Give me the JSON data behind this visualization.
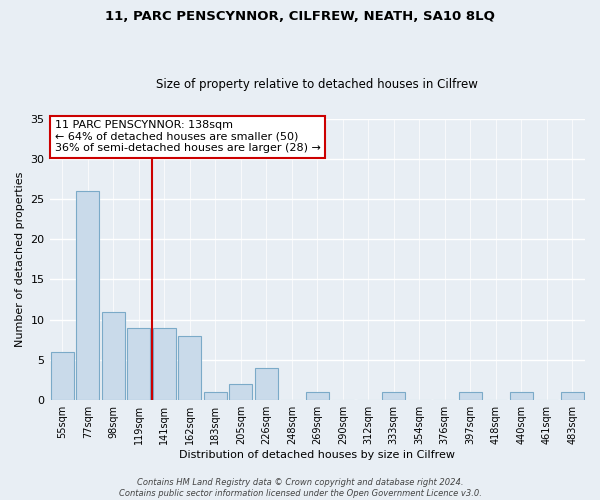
{
  "title": "11, PARC PENSCYNNOR, CILFREW, NEATH, SA10 8LQ",
  "subtitle": "Size of property relative to detached houses in Cilfrew",
  "xlabel": "Distribution of detached houses by size in Cilfrew",
  "ylabel": "Number of detached properties",
  "bar_labels": [
    "55sqm",
    "77sqm",
    "98sqm",
    "119sqm",
    "141sqm",
    "162sqm",
    "183sqm",
    "205sqm",
    "226sqm",
    "248sqm",
    "269sqm",
    "290sqm",
    "312sqm",
    "333sqm",
    "354sqm",
    "376sqm",
    "397sqm",
    "418sqm",
    "440sqm",
    "461sqm",
    "483sqm"
  ],
  "bar_values": [
    6,
    26,
    11,
    9,
    9,
    8,
    1,
    2,
    4,
    0,
    1,
    0,
    0,
    1,
    0,
    0,
    1,
    0,
    1,
    0,
    1
  ],
  "bar_color": "#c9daea",
  "bar_edge_color": "#7baac8",
  "ref_line_x": 3.5,
  "ref_line_color": "#cc0000",
  "annotation_line1": "11 PARC PENSCYNNOR: 138sqm",
  "annotation_line2": "← 64% of detached houses are smaller (50)",
  "annotation_line3": "36% of semi-detached houses are larger (28) →",
  "annotation_box_color": "#ffffff",
  "annotation_box_edge": "#cc0000",
  "ylim": [
    0,
    35
  ],
  "yticks": [
    0,
    5,
    10,
    15,
    20,
    25,
    30,
    35
  ],
  "footer_text": "Contains HM Land Registry data © Crown copyright and database right 2024.\nContains public sector information licensed under the Open Government Licence v3.0.",
  "background_color": "#e8eef4",
  "plot_background": "#e8eef4",
  "grid_color": "#ffffff",
  "title_fontsize": 9.5,
  "subtitle_fontsize": 8.5
}
